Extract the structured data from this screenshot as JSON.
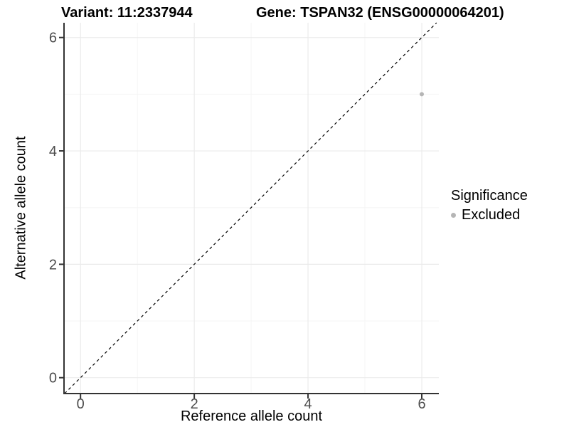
{
  "page": {
    "background": "#ffffff"
  },
  "titles": {
    "left": "Variant: 11:2337944",
    "right": "Gene: TSPAN32 (ENSG00000064201)"
  },
  "legend": {
    "title": "Significance",
    "items": [
      {
        "label": "Excluded",
        "color": "#b5b5b5"
      }
    ]
  },
  "chart_data": {
    "type": "scatter",
    "title": "Variant: 11:2337944   Gene: TSPAN32 (ENSG00000064201)",
    "xlabel": "Reference allele count",
    "ylabel": "Alternative allele count",
    "xlim": [
      -0.29,
      6.3
    ],
    "ylim": [
      -0.28,
      6.26
    ],
    "x_ticks": [
      0,
      2,
      4,
      6
    ],
    "y_ticks": [
      0,
      2,
      4,
      6
    ],
    "x_minor_ticks": [
      1,
      3,
      5
    ],
    "y_minor_ticks": [
      1,
      3,
      5
    ],
    "grid": true,
    "legend_position": "right",
    "series": [
      {
        "name": "Excluded",
        "color": "#b5b5b5",
        "points": [
          {
            "x": 6,
            "y": 5
          }
        ]
      }
    ],
    "reference_line": {
      "type": "identity",
      "style": "dashed",
      "color": "#000000"
    },
    "colors": {
      "grid_major": "#ebebeb",
      "grid_minor": "#f5f5f5",
      "axis_line": "#333333",
      "tick_mark": "#333333",
      "tick_label": "#4d4d4d"
    }
  }
}
